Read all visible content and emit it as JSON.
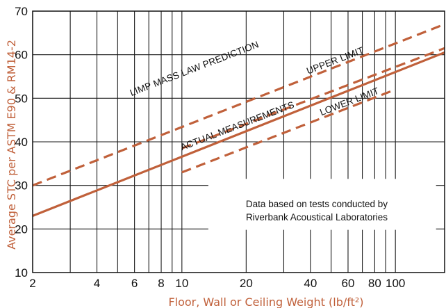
{
  "chart_data": {
    "type": "line",
    "xlabel": "Floor, Wall or Ceiling Weight (lb/ft²)",
    "ylabel": "Average STC per ASTM E90 & RM14-2",
    "x_scale": "log",
    "xlim": [
      2,
      170
    ],
    "ylim": [
      10,
      70
    ],
    "x_ticks": [
      2,
      4,
      6,
      8,
      10,
      20,
      40,
      60,
      80,
      100
    ],
    "x_tick_labels": [
      "2",
      "4",
      "6",
      "8",
      "10",
      "20",
      "40",
      "60",
      "80",
      "100"
    ],
    "x_gridlines": [
      2,
      3,
      4,
      5,
      6,
      7,
      8,
      9,
      10,
      20,
      30,
      40,
      50,
      60,
      70,
      80,
      90,
      100
    ],
    "y_ticks": [
      10,
      20,
      30,
      40,
      50,
      60,
      70
    ],
    "grid": true,
    "series": [
      {
        "name": "LIMP MASS LAW PREDICTION",
        "style": "dashed",
        "color": "#c0603a",
        "x": [
          2,
          170
        ],
        "y": [
          30,
          67
        ]
      },
      {
        "name": "UPPER LIMIT",
        "style": "dashed",
        "color": "#c0603a",
        "x": [
          10,
          170
        ],
        "y": [
          38.5,
          61.5
        ]
      },
      {
        "name": "ACTUAL MEASUREMENTS",
        "style": "solid",
        "color": "#c0603a",
        "x": [
          2,
          170
        ],
        "y": [
          23,
          60.5
        ]
      },
      {
        "name": "LOWER LIMIT",
        "style": "dashed",
        "color": "#c0603a",
        "x": [
          10,
          100
        ],
        "y": [
          33,
          52
        ]
      }
    ],
    "annotations": [
      {
        "text": "LIMP MASS LAW PREDICTION",
        "x": 5.8,
        "y": 50.5,
        "angle": -21
      },
      {
        "text": "UPPER LIMIT",
        "x": 39,
        "y": 55.5,
        "angle": -21
      },
      {
        "text": "ACTUAL MEASUREMENTS",
        "x": 10,
        "y": 38,
        "angle": -21
      },
      {
        "text": "LOWER LIMIT",
        "x": 45,
        "y": 46,
        "angle": -21
      }
    ],
    "note": [
      "Data based on tests conducted by",
      "Riverbank Acoustical Laboratories"
    ]
  }
}
